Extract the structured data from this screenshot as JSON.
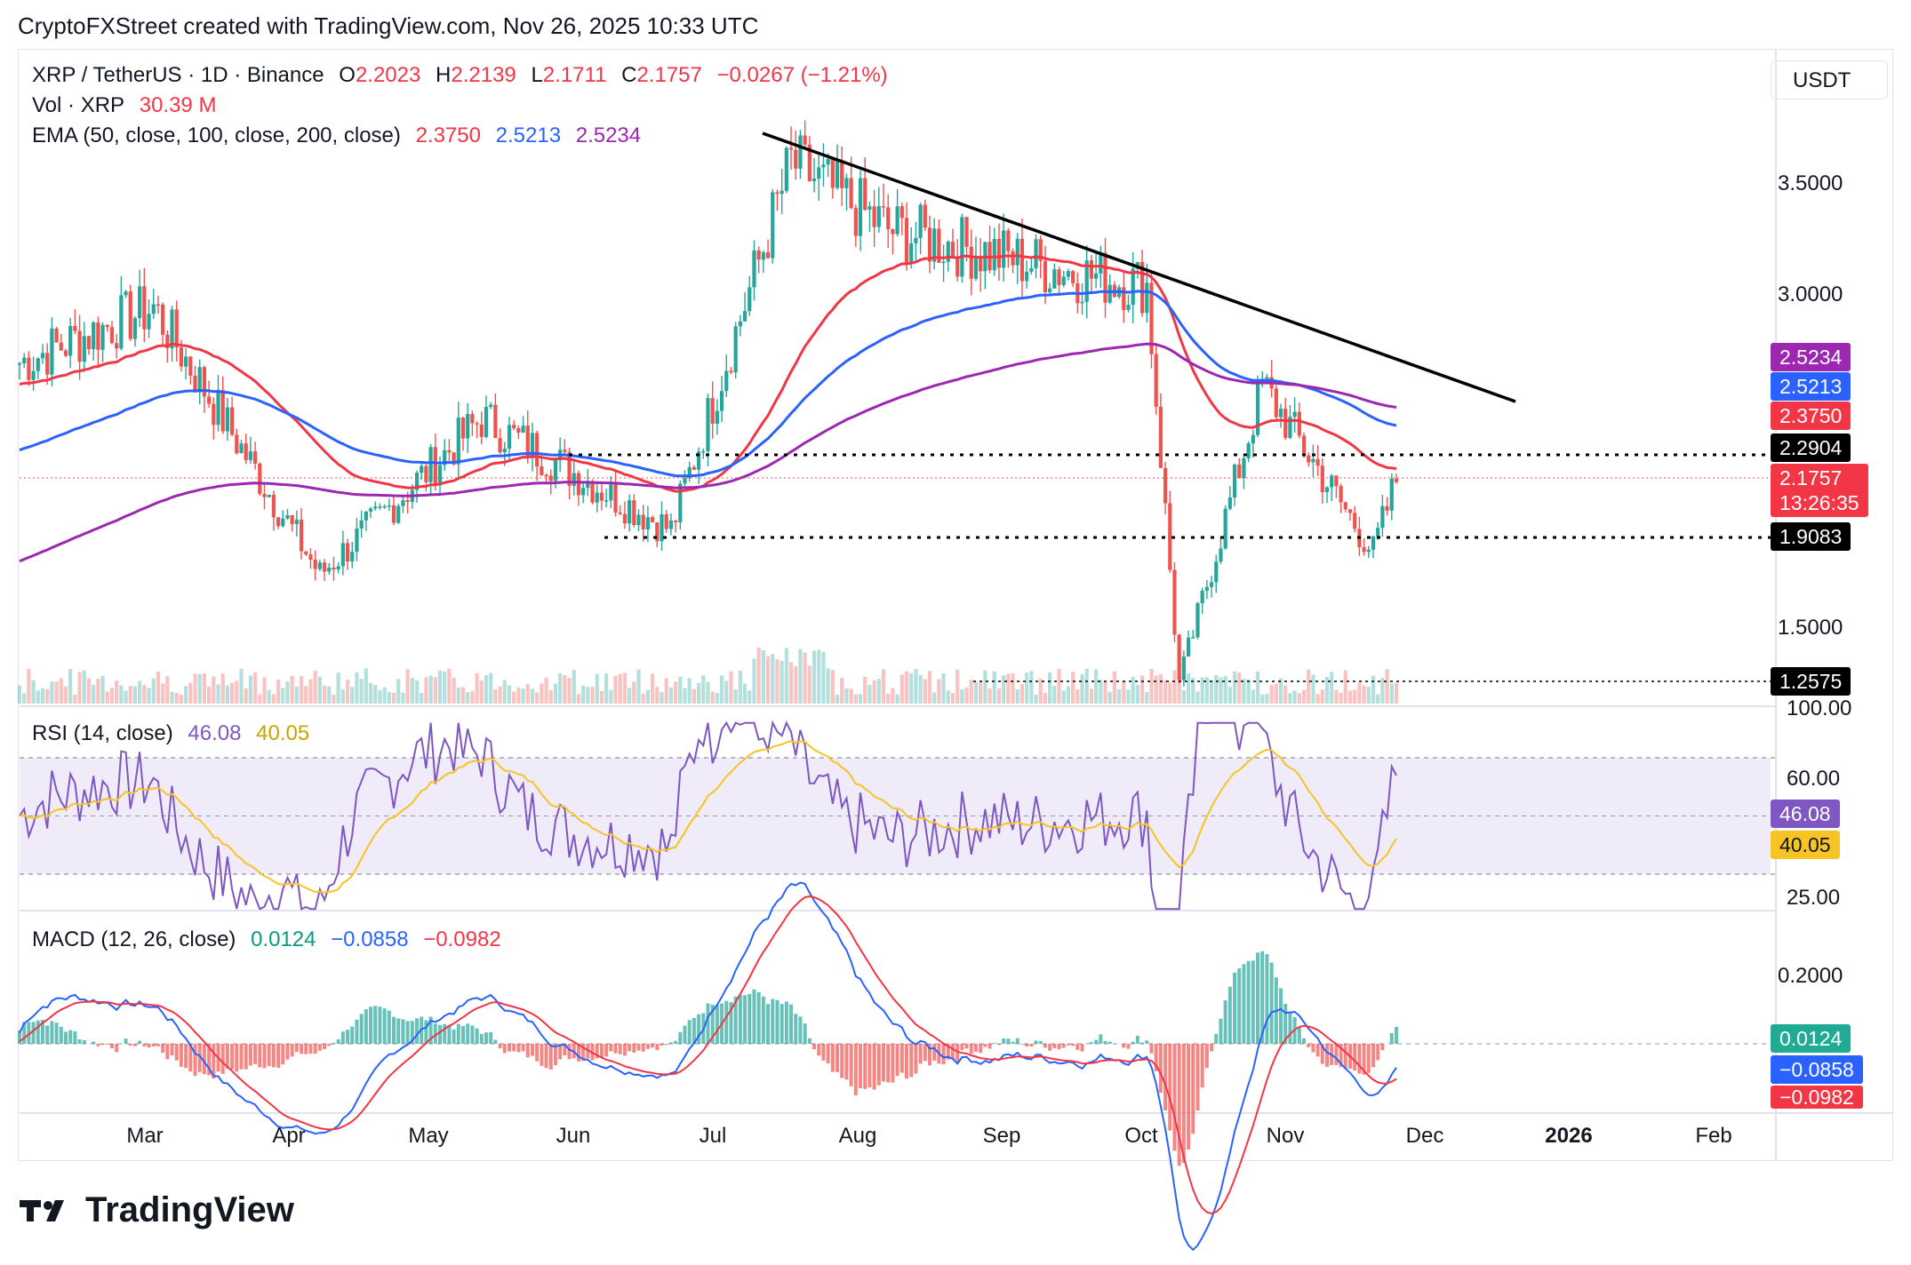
{
  "header": "CryptoFXStreet created with TradingView.com, Nov 26, 2025 10:33 UTC",
  "currency_button": "USDT",
  "logo_text": "TradingView",
  "legend_main": {
    "symbol": "XRP / TetherUS · 1D · Binance",
    "o_label": "O",
    "o": "2.2023",
    "h_label": "H",
    "h": "2.2139",
    "l_label": "L",
    "l": "2.1711",
    "c_label": "C",
    "c": "2.1757",
    "change": "−0.0267 (−1.21%)"
  },
  "legend_vol": {
    "label": "Vol · XRP",
    "value": "30.39 M"
  },
  "legend_ema": {
    "label": "EMA (50, close, 100, close, 200, close)",
    "ema50": "2.3750",
    "ema100": "2.5213",
    "ema200": "2.5234"
  },
  "legend_rsi": {
    "label": "RSI (14, close)",
    "rsi": "46.08",
    "ma": "40.05"
  },
  "legend_macd": {
    "label": "MACD (12, 26, close)",
    "hist": "0.0124",
    "macd": "−0.0858",
    "signal": "−0.0982"
  },
  "price_axis": [
    "3.5000",
    "3.0000",
    "1.5000"
  ],
  "price_tags": {
    "ema200": "2.5234",
    "ema100": "2.5213",
    "ema50": "2.3750",
    "resistance": "2.2904",
    "last": "2.1757",
    "countdown": "13:26:35",
    "support": "1.9083",
    "low_level": "1.2575"
  },
  "rsi_axis": [
    "100.00",
    "60.00",
    "25.00"
  ],
  "macd_axis": [
    "0.2000"
  ],
  "x_ticks": [
    {
      "label": "Mar",
      "bold": false
    },
    {
      "label": "Apr",
      "bold": false
    },
    {
      "label": "May",
      "bold": false
    },
    {
      "label": "Jun",
      "bold": false
    },
    {
      "label": "Jul",
      "bold": false
    },
    {
      "label": "Aug",
      "bold": false
    },
    {
      "label": "Sep",
      "bold": false
    },
    {
      "label": "Oct",
      "bold": false
    },
    {
      "label": "Nov",
      "bold": false
    },
    {
      "label": "Dec",
      "bold": false
    },
    {
      "label": "2026",
      "bold": true
    },
    {
      "label": "Feb",
      "bold": false
    }
  ],
  "colors": {
    "up": "#26a69a",
    "down": "#ef5350",
    "ema50": "#f23645",
    "ema100": "#2962ff",
    "ema200": "#9c27b0",
    "rsi": "#7e57c2",
    "rsi_ma": "#f7c325",
    "macd": "#2962ff",
    "signal": "#f23645",
    "black_tag": "#000000",
    "last_tag": "#f23645"
  },
  "chart_data": {
    "type": "line",
    "x_range": [
      "2025-02-01",
      "2026-02-15"
    ],
    "price_scale": {
      "min": 1.25,
      "max": 3.75
    },
    "price_key_points": [
      {
        "date": "2025-02-01",
        "price": 2.7
      },
      {
        "date": "2025-03-02",
        "price": 2.95
      },
      {
        "date": "2025-04-07",
        "price": 1.75
      },
      {
        "date": "2025-05-12",
        "price": 2.45
      },
      {
        "date": "2025-06-22",
        "price": 1.95
      },
      {
        "date": "2025-07-18",
        "price": 3.6
      },
      {
        "date": "2025-08-08",
        "price": 3.3
      },
      {
        "date": "2025-09-18",
        "price": 3.1
      },
      {
        "date": "2025-10-03",
        "price": 3.05
      },
      {
        "date": "2025-10-10",
        "price": 1.26
      },
      {
        "date": "2025-10-28",
        "price": 2.6
      },
      {
        "date": "2025-11-21",
        "price": 1.85
      },
      {
        "date": "2025-11-26",
        "price": 2.1757
      }
    ],
    "ema_series": [
      {
        "name": "EMA 50",
        "last": 2.375
      },
      {
        "name": "EMA 100",
        "last": 2.5213
      },
      {
        "name": "EMA 200",
        "last": 2.5234
      }
    ],
    "trendline": [
      {
        "date": "2025-07-10",
        "price": 3.7
      },
      {
        "date": "2025-12-05",
        "price": 2.6
      }
    ],
    "support_levels": [
      2.2904,
      1.9083,
      1.2575
    ],
    "rsi": {
      "last": 46.08,
      "ma_last": 40.05,
      "band": [
        30,
        70
      ]
    },
    "macd": {
      "hist": 0.0124,
      "macd": -0.0858,
      "signal": -0.0982
    }
  }
}
